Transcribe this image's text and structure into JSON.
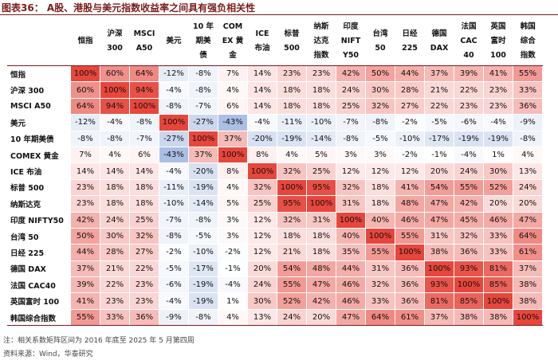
{
  "title": "图表36：  A股、港股与美元指数收益率之间具有强负相关性",
  "note": "注：相关系数矩阵区间为 2016 年底至 2025 年 5 月第四周",
  "source": "资料来源：Wind，华泰研究",
  "colors": {
    "positive": "#e8463c",
    "negative": "#3a6bc0",
    "rule": "#7a1c1c"
  },
  "chart_data": {
    "type": "heatmap",
    "column_headers": [
      [
        "恒指"
      ],
      [
        "沪深",
        "300"
      ],
      [
        "MSCI",
        "A50"
      ],
      [
        "美元"
      ],
      [
        "10 年",
        "期美",
        "债"
      ],
      [
        "COM",
        "EX 黄",
        "金"
      ],
      [
        "ICE",
        "布油"
      ],
      [
        "标普",
        "500"
      ],
      [
        "纳斯",
        "达克",
        "指数"
      ],
      [
        "印度",
        "NIFT",
        "Y50"
      ],
      [
        "台湾",
        "50"
      ],
      [
        "日经",
        "225"
      ],
      [
        "德国",
        "DAX"
      ],
      [
        "法国",
        "CAC",
        "40"
      ],
      [
        "英国",
        "富时",
        "100"
      ],
      [
        "韩国",
        "综合",
        "指数"
      ]
    ],
    "rows": [
      "恒指",
      "沪深 300",
      "MSCI A50",
      "美元",
      "10 年期美债",
      "COMEX 黄金",
      "ICE 布油",
      "标普 500",
      "纳斯达克",
      "印度 NIFTY50",
      "台湾 50",
      "日经 225",
      "德国 DAX",
      "法国 CAC40",
      "英国富时 100",
      "韩国综合指数"
    ],
    "values": [
      [
        100,
        60,
        64,
        -12,
        -8,
        7,
        14,
        23,
        23,
        42,
        50,
        44,
        37,
        39,
        41,
        55
      ],
      [
        60,
        100,
        94,
        -4,
        -8,
        4,
        14,
        18,
        18,
        24,
        30,
        28,
        21,
        22,
        23,
        33
      ],
      [
        64,
        94,
        100,
        -8,
        -7,
        6,
        14,
        18,
        18,
        25,
        32,
        27,
        22,
        23,
        23,
        36
      ],
      [
        -12,
        -4,
        -8,
        100,
        -27,
        -43,
        -4,
        -11,
        -10,
        -7,
        -8,
        -2,
        -5,
        -6,
        -4,
        -9
      ],
      [
        -8,
        -8,
        -7,
        -27,
        100,
        37,
        -20,
        -19,
        -14,
        -8,
        -5,
        -10,
        -17,
        -19,
        -19,
        -8
      ],
      [
        7,
        4,
        6,
        -43,
        37,
        100,
        8,
        4,
        5,
        3,
        3,
        -2,
        -1,
        -4,
        1,
        4
      ],
      [
        14,
        14,
        14,
        -4,
        -20,
        8,
        100,
        32,
        25,
        12,
        12,
        12,
        20,
        24,
        30,
        13
      ],
      [
        23,
        18,
        18,
        -11,
        -19,
        4,
        32,
        100,
        95,
        32,
        18,
        41,
        54,
        55,
        52,
        24
      ],
      [
        23,
        18,
        18,
        -10,
        -14,
        5,
        25,
        95,
        100,
        31,
        18,
        48,
        47,
        42,
        20,
        20
      ],
      [
        42,
        24,
        25,
        -7,
        -8,
        3,
        12,
        32,
        31,
        100,
        40,
        46,
        47,
        45,
        46,
        47
      ],
      [
        50,
        30,
        32,
        -8,
        -5,
        3,
        12,
        18,
        18,
        40,
        100,
        55,
        31,
        32,
        33,
        64
      ],
      [
        44,
        28,
        27,
        -2,
        -10,
        -2,
        12,
        21,
        18,
        35,
        55,
        100,
        38,
        36,
        33,
        61
      ],
      [
        37,
        21,
        22,
        -5,
        -17,
        -1,
        20,
        54,
        48,
        44,
        31,
        36,
        100,
        93,
        81,
        37
      ],
      [
        39,
        22,
        23,
        -6,
        -19,
        -4,
        24,
        55,
        47,
        46,
        32,
        36,
        93,
        100,
        85,
        38
      ],
      [
        41,
        23,
        23,
        -4,
        -19,
        1,
        30,
        52,
        42,
        46,
        33,
        36,
        81,
        85,
        100,
        38
      ],
      [
        55,
        33,
        36,
        -9,
        -8,
        4,
        13,
        24,
        20,
        47,
        64,
        61,
        37,
        38,
        38,
        100
      ]
    ],
    "value_format": "percent",
    "color_scale": "red for positive, blue for negative, intensity by magnitude"
  }
}
